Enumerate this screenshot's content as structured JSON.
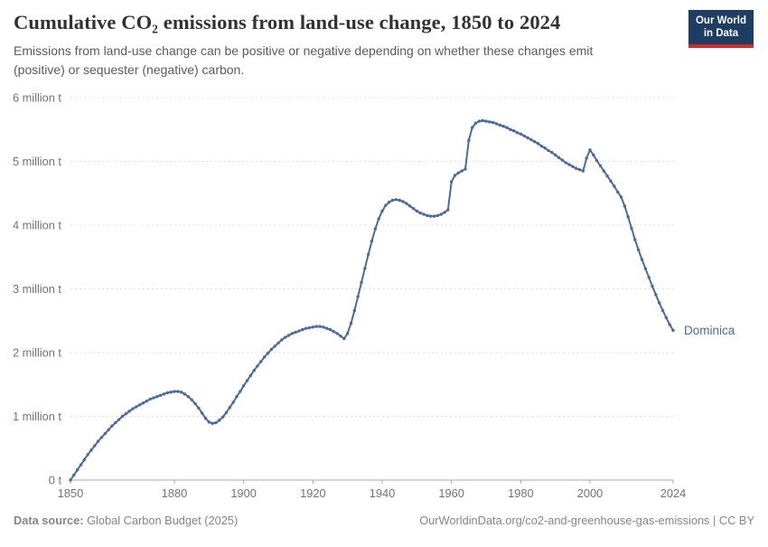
{
  "header": {
    "title": "Cumulative CO₂ emissions from land-use change, 1850 to 2024",
    "subtitle": "Emissions from land-use change can be positive or negative depending on whether these changes emit (positive) or sequester (negative) carbon."
  },
  "logo": {
    "line1": "Our World",
    "line2": "in Data",
    "bg_color": "#1d3d63",
    "accent_color": "#d42b27"
  },
  "footer": {
    "datasource_label": "Data source:",
    "datasource_value": " Global Carbon Budget (2025)",
    "right_text": "OurWorldinData.org/co2-and-greenhouse-gas-emissions | CC BY"
  },
  "chart_data": {
    "type": "line",
    "title": "Cumulative CO₂ emissions from land-use change, 1850 to 2024",
    "unit": "million tonnes of CO₂",
    "x_start": 1850,
    "x_end": 2024,
    "x_step": 1,
    "xticks": [
      1850,
      1880,
      1900,
      1920,
      1940,
      1960,
      1980,
      2000,
      2024
    ],
    "yticks": [
      {
        "value": 0,
        "label": "0 t"
      },
      {
        "value": 1,
        "label": "1 million t"
      },
      {
        "value": 2,
        "label": "2 million t"
      },
      {
        "value": 3,
        "label": "3 million t"
      },
      {
        "value": 4,
        "label": "4 million t"
      },
      {
        "value": 5,
        "label": "5 million t"
      },
      {
        "value": 6,
        "label": "6 million t"
      }
    ],
    "ylim": [
      0,
      6
    ],
    "grid": "dashed-horizontal",
    "legend_position": "end-of-line",
    "axis_color": "#a8a8a8",
    "grid_color": "#e0e0e0",
    "series": [
      {
        "name": "Dominica",
        "color": "#4c6a9c",
        "values": [
          0.0,
          0.08,
          0.16,
          0.24,
          0.32,
          0.4,
          0.47,
          0.54,
          0.61,
          0.67,
          0.73,
          0.79,
          0.85,
          0.9,
          0.95,
          1.0,
          1.04,
          1.08,
          1.12,
          1.15,
          1.18,
          1.21,
          1.24,
          1.27,
          1.29,
          1.31,
          1.33,
          1.35,
          1.37,
          1.38,
          1.39,
          1.39,
          1.38,
          1.35,
          1.31,
          1.26,
          1.2,
          1.13,
          1.05,
          0.97,
          0.91,
          0.89,
          0.9,
          0.94,
          0.99,
          1.06,
          1.14,
          1.22,
          1.31,
          1.39,
          1.48,
          1.56,
          1.64,
          1.72,
          1.79,
          1.86,
          1.93,
          1.99,
          2.05,
          2.1,
          2.15,
          2.2,
          2.24,
          2.27,
          2.3,
          2.32,
          2.34,
          2.36,
          2.38,
          2.39,
          2.4,
          2.41,
          2.41,
          2.4,
          2.38,
          2.36,
          2.33,
          2.3,
          2.26,
          2.22,
          2.3,
          2.46,
          2.66,
          2.88,
          3.1,
          3.32,
          3.54,
          3.75,
          3.94,
          4.1,
          4.22,
          4.31,
          4.36,
          4.39,
          4.4,
          4.39,
          4.37,
          4.34,
          4.3,
          4.26,
          4.22,
          4.19,
          4.17,
          4.15,
          4.14,
          4.14,
          4.15,
          4.17,
          4.2,
          4.24,
          4.68,
          4.78,
          4.82,
          4.85,
          4.88,
          5.33,
          5.53,
          5.6,
          5.63,
          5.64,
          5.63,
          5.62,
          5.61,
          5.59,
          5.57,
          5.55,
          5.53,
          5.5,
          5.48,
          5.45,
          5.43,
          5.4,
          5.37,
          5.34,
          5.31,
          5.28,
          5.24,
          5.21,
          5.17,
          5.14,
          5.1,
          5.06,
          5.02,
          4.98,
          4.95,
          4.92,
          4.89,
          4.87,
          4.85,
          5.05,
          5.18,
          5.1,
          5.01,
          4.93,
          4.85,
          4.77,
          4.69,
          4.61,
          4.52,
          4.44,
          4.3,
          4.13,
          3.95,
          3.77,
          3.61,
          3.46,
          3.32,
          3.18,
          3.04,
          2.91,
          2.78,
          2.66,
          2.55,
          2.44,
          2.35
        ]
      }
    ]
  }
}
